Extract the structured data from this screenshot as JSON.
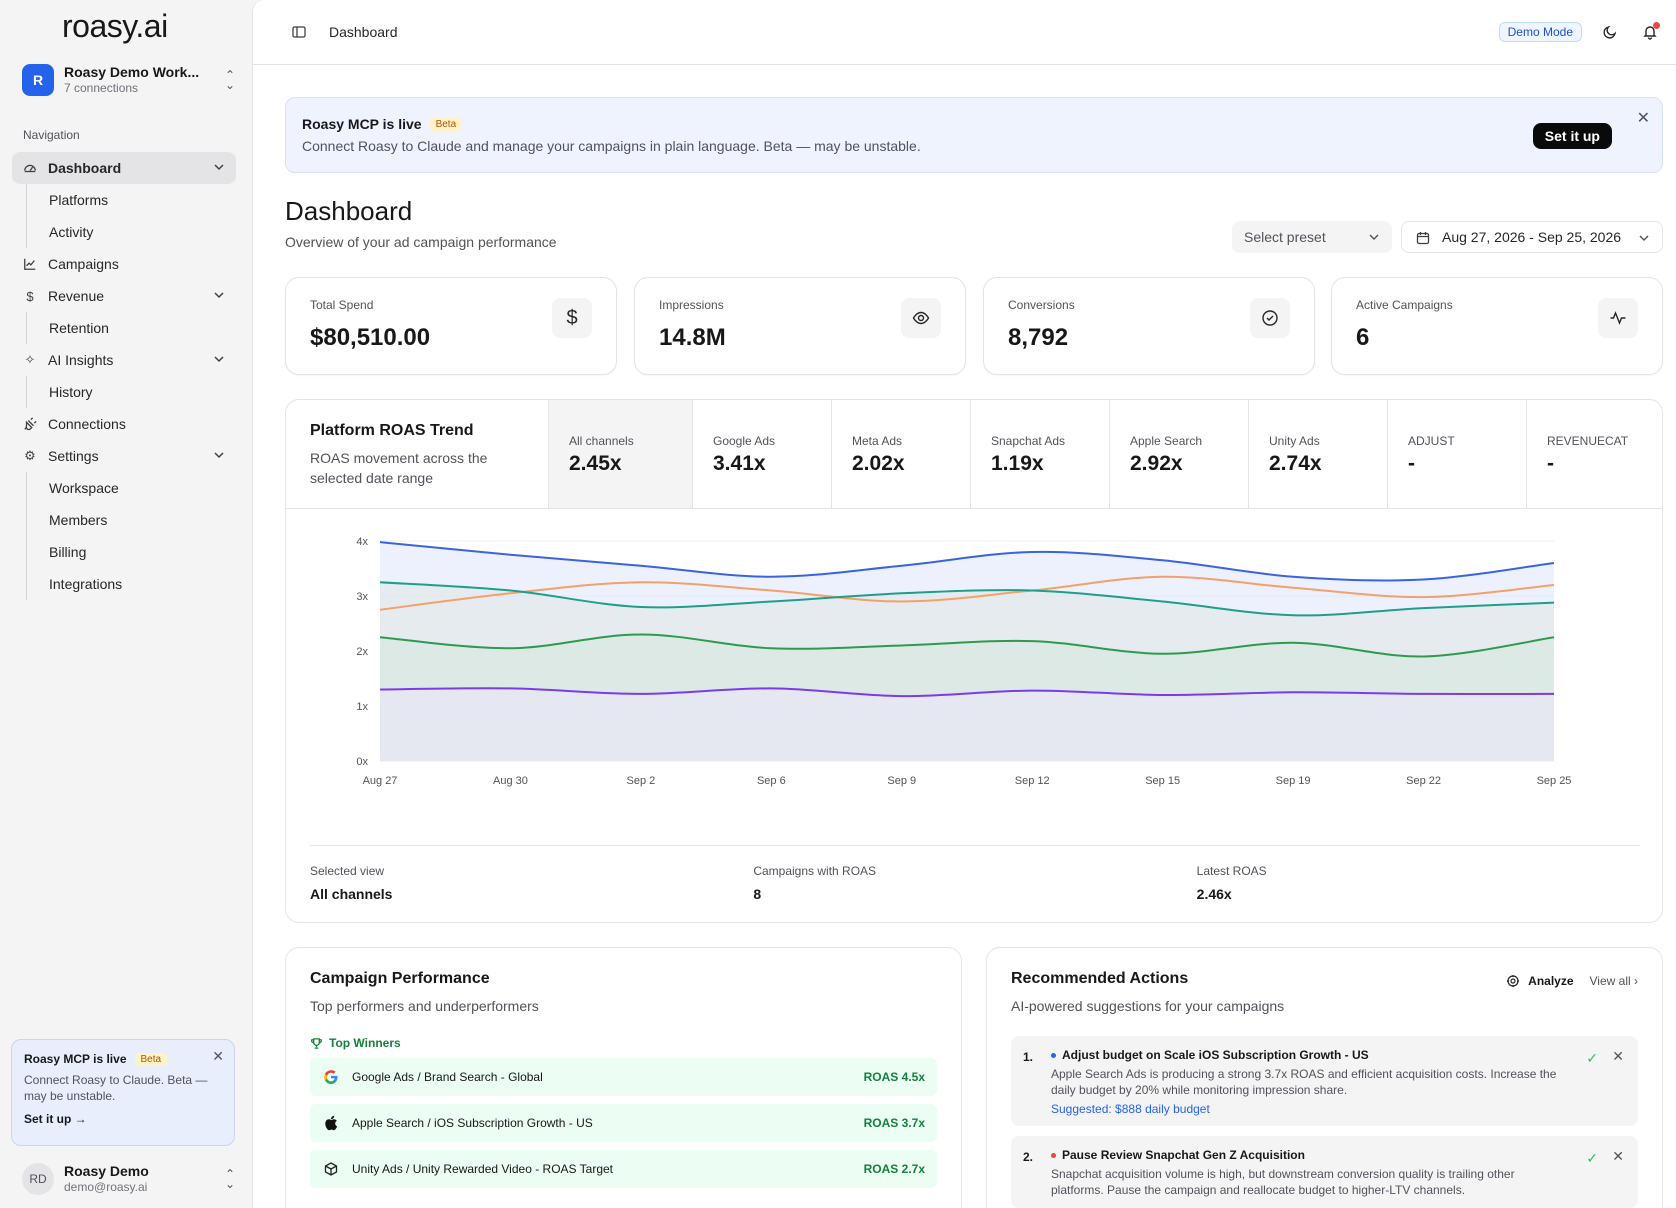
{
  "sidebar": {
    "logo": "roasy.ai",
    "workspace": {
      "initial": "R",
      "name": "Roasy Demo Work...",
      "connections": "7 connections"
    },
    "nav_heading": "Navigation",
    "items": {
      "dashboard": "Dashboard",
      "platforms": "Platforms",
      "activity": "Activity",
      "campaigns": "Campaigns",
      "revenue": "Revenue",
      "retention": "Retention",
      "ai_insights": "AI Insights",
      "history": "History",
      "connections": "Connections",
      "settings": "Settings",
      "workspace": "Workspace",
      "members": "Members",
      "billing": "Billing",
      "integrations": "Integrations"
    },
    "promo": {
      "title": "Roasy MCP is live",
      "badge": "Beta",
      "text": "Connect Roasy to Claude. Beta — may be unstable.",
      "link": "Set it up →"
    },
    "user": {
      "initials": "RD",
      "name": "Roasy Demo",
      "email": "demo@roasy.ai"
    }
  },
  "topbar": {
    "title": "Dashboard",
    "demo_badge": "Demo Mode"
  },
  "banner": {
    "title": "Roasy MCP is live",
    "badge": "Beta",
    "text": "Connect Roasy to Claude and manage your campaigns in plain language. Beta — may be unstable.",
    "button": "Set it up"
  },
  "page": {
    "title": "Dashboard",
    "subtitle": "Overview of your ad campaign performance",
    "preset_placeholder": "Select preset",
    "date_range": "Aug 27, 2026 - Sep 25, 2026"
  },
  "kpis": [
    {
      "label": "Total Spend",
      "value": "$80,510.00",
      "icon": "dollar-icon"
    },
    {
      "label": "Impressions",
      "value": "14.8M",
      "icon": "eye-icon"
    },
    {
      "label": "Conversions",
      "value": "8,792",
      "icon": "check-circle-icon"
    },
    {
      "label": "Active Campaigns",
      "value": "6",
      "icon": "activity-icon"
    }
  ],
  "trend": {
    "title": "Platform ROAS Trend",
    "subtitle": "ROAS movement across the selected date range",
    "tabs": [
      {
        "label": "All channels",
        "value": "2.45x"
      },
      {
        "label": "Google Ads",
        "value": "3.41x"
      },
      {
        "label": "Meta Ads",
        "value": "2.02x"
      },
      {
        "label": "Snapchat Ads",
        "value": "1.19x"
      },
      {
        "label": "Apple Search",
        "value": "2.92x"
      },
      {
        "label": "Unity Ads",
        "value": "2.74x"
      },
      {
        "label": "ADJUST",
        "value": "-"
      },
      {
        "label": "REVENUECAT",
        "value": "-"
      }
    ],
    "footer": [
      {
        "label": "Selected view",
        "value": "All channels"
      },
      {
        "label": "Campaigns with ROAS",
        "value": "8"
      },
      {
        "label": "Latest ROAS",
        "value": "2.46x"
      }
    ]
  },
  "chart_data": {
    "type": "area",
    "x": [
      "Aug 27",
      "Aug 30",
      "Sep 2",
      "Sep 6",
      "Sep 9",
      "Sep 12",
      "Sep 15",
      "Sep 19",
      "Sep 22",
      "Sep 25"
    ],
    "ylim": [
      0,
      4
    ],
    "y_ticks": [
      "0x",
      "1x",
      "2x",
      "3x",
      "4x"
    ],
    "grid": true,
    "series": [
      {
        "color": "#3b63e0",
        "fill": "#dde5fb",
        "values": [
          3.98,
          3.75,
          3.55,
          3.35,
          3.55,
          3.8,
          3.65,
          3.35,
          3.3,
          3.6
        ]
      },
      {
        "color": "#f4a06a",
        "fill": "",
        "values": [
          2.75,
          3.05,
          3.25,
          3.1,
          2.9,
          3.1,
          3.35,
          3.15,
          2.98,
          3.2
        ]
      },
      {
        "color": "#1f9e8a",
        "fill": "#e2e6e6",
        "values": [
          3.25,
          3.1,
          2.8,
          2.9,
          3.05,
          3.1,
          2.9,
          2.65,
          2.78,
          2.88
        ]
      },
      {
        "color": "#2f9a4f",
        "fill": "#d6e8db",
        "values": [
          2.25,
          2.05,
          2.3,
          2.05,
          2.1,
          2.18,
          1.95,
          2.15,
          1.9,
          2.25
        ]
      },
      {
        "color": "#7c3aed",
        "fill": "#ede7fb",
        "values": [
          1.3,
          1.32,
          1.22,
          1.32,
          1.18,
          1.28,
          1.2,
          1.25,
          1.22,
          1.22
        ]
      }
    ]
  },
  "campaign_perf": {
    "title": "Campaign Performance",
    "subtitle": "Top performers and underperformers",
    "winners_label": "Top Winners",
    "winners": [
      {
        "icon": "google-icon",
        "name": "Google Ads / Brand Search - Global",
        "roas": "ROAS 4.5x"
      },
      {
        "icon": "apple-icon",
        "name": "Apple Search / iOS Subscription Growth - US",
        "roas": "ROAS 3.7x"
      },
      {
        "icon": "unity-icon",
        "name": "Unity Ads / Unity Rewarded Video - ROAS Target",
        "roas": "ROAS 2.7x"
      }
    ]
  },
  "recommended": {
    "title": "Recommended Actions",
    "subtitle": "AI-powered suggestions for your campaigns",
    "analyze": "Analyze",
    "view_all": "View all",
    "items": [
      {
        "num": "1.",
        "dot": "#2563eb",
        "title": "Adjust budget on Scale iOS Subscription Growth - US",
        "text": "Apple Search Ads is producing a strong 3.7x ROAS and efficient acquisition costs. Increase the daily budget by 20% while monitoring impression share.",
        "suggested": "Suggested: $888 daily budget"
      },
      {
        "num": "2.",
        "dot": "#ef4444",
        "title": "Pause Review Snapchat Gen Z Acquisition",
        "text": "Snapchat acquisition volume is high, but downstream conversion quality is trailing other platforms. Pause the campaign and reallocate budget to higher-LTV channels.",
        "suggested": ""
      }
    ]
  }
}
